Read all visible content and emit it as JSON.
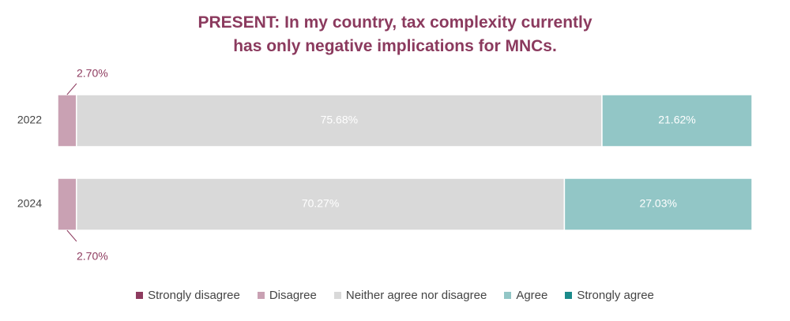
{
  "chart_data": {
    "type": "stacked-bar-horizontal",
    "title": "PRESENT: In my country, tax complexity currently has only negative implications for MNCs.",
    "categories": [
      "2022",
      "2024"
    ],
    "xlim": [
      0,
      100
    ],
    "series": [
      {
        "name": "Strongly disagree",
        "color": "#8e3b5f",
        "values": [
          0,
          0
        ]
      },
      {
        "name": "Disagree",
        "color": "#c9a1b3",
        "values": [
          2.7,
          2.7
        ],
        "value_labels": [
          "2.70%",
          "2.70%"
        ]
      },
      {
        "name": "Neither agree nor disagree",
        "color": "#d9d9d9",
        "values": [
          75.68,
          70.27
        ],
        "value_labels": [
          "75.68%",
          "70.27%"
        ]
      },
      {
        "name": "Agree",
        "color": "#92c6c6",
        "values": [
          21.62,
          27.03
        ],
        "value_labels": [
          "21.62%",
          "27.03%"
        ]
      },
      {
        "name": "Strongly agree",
        "color": "#1b8a8a",
        "values": [
          0,
          0
        ]
      }
    ]
  }
}
